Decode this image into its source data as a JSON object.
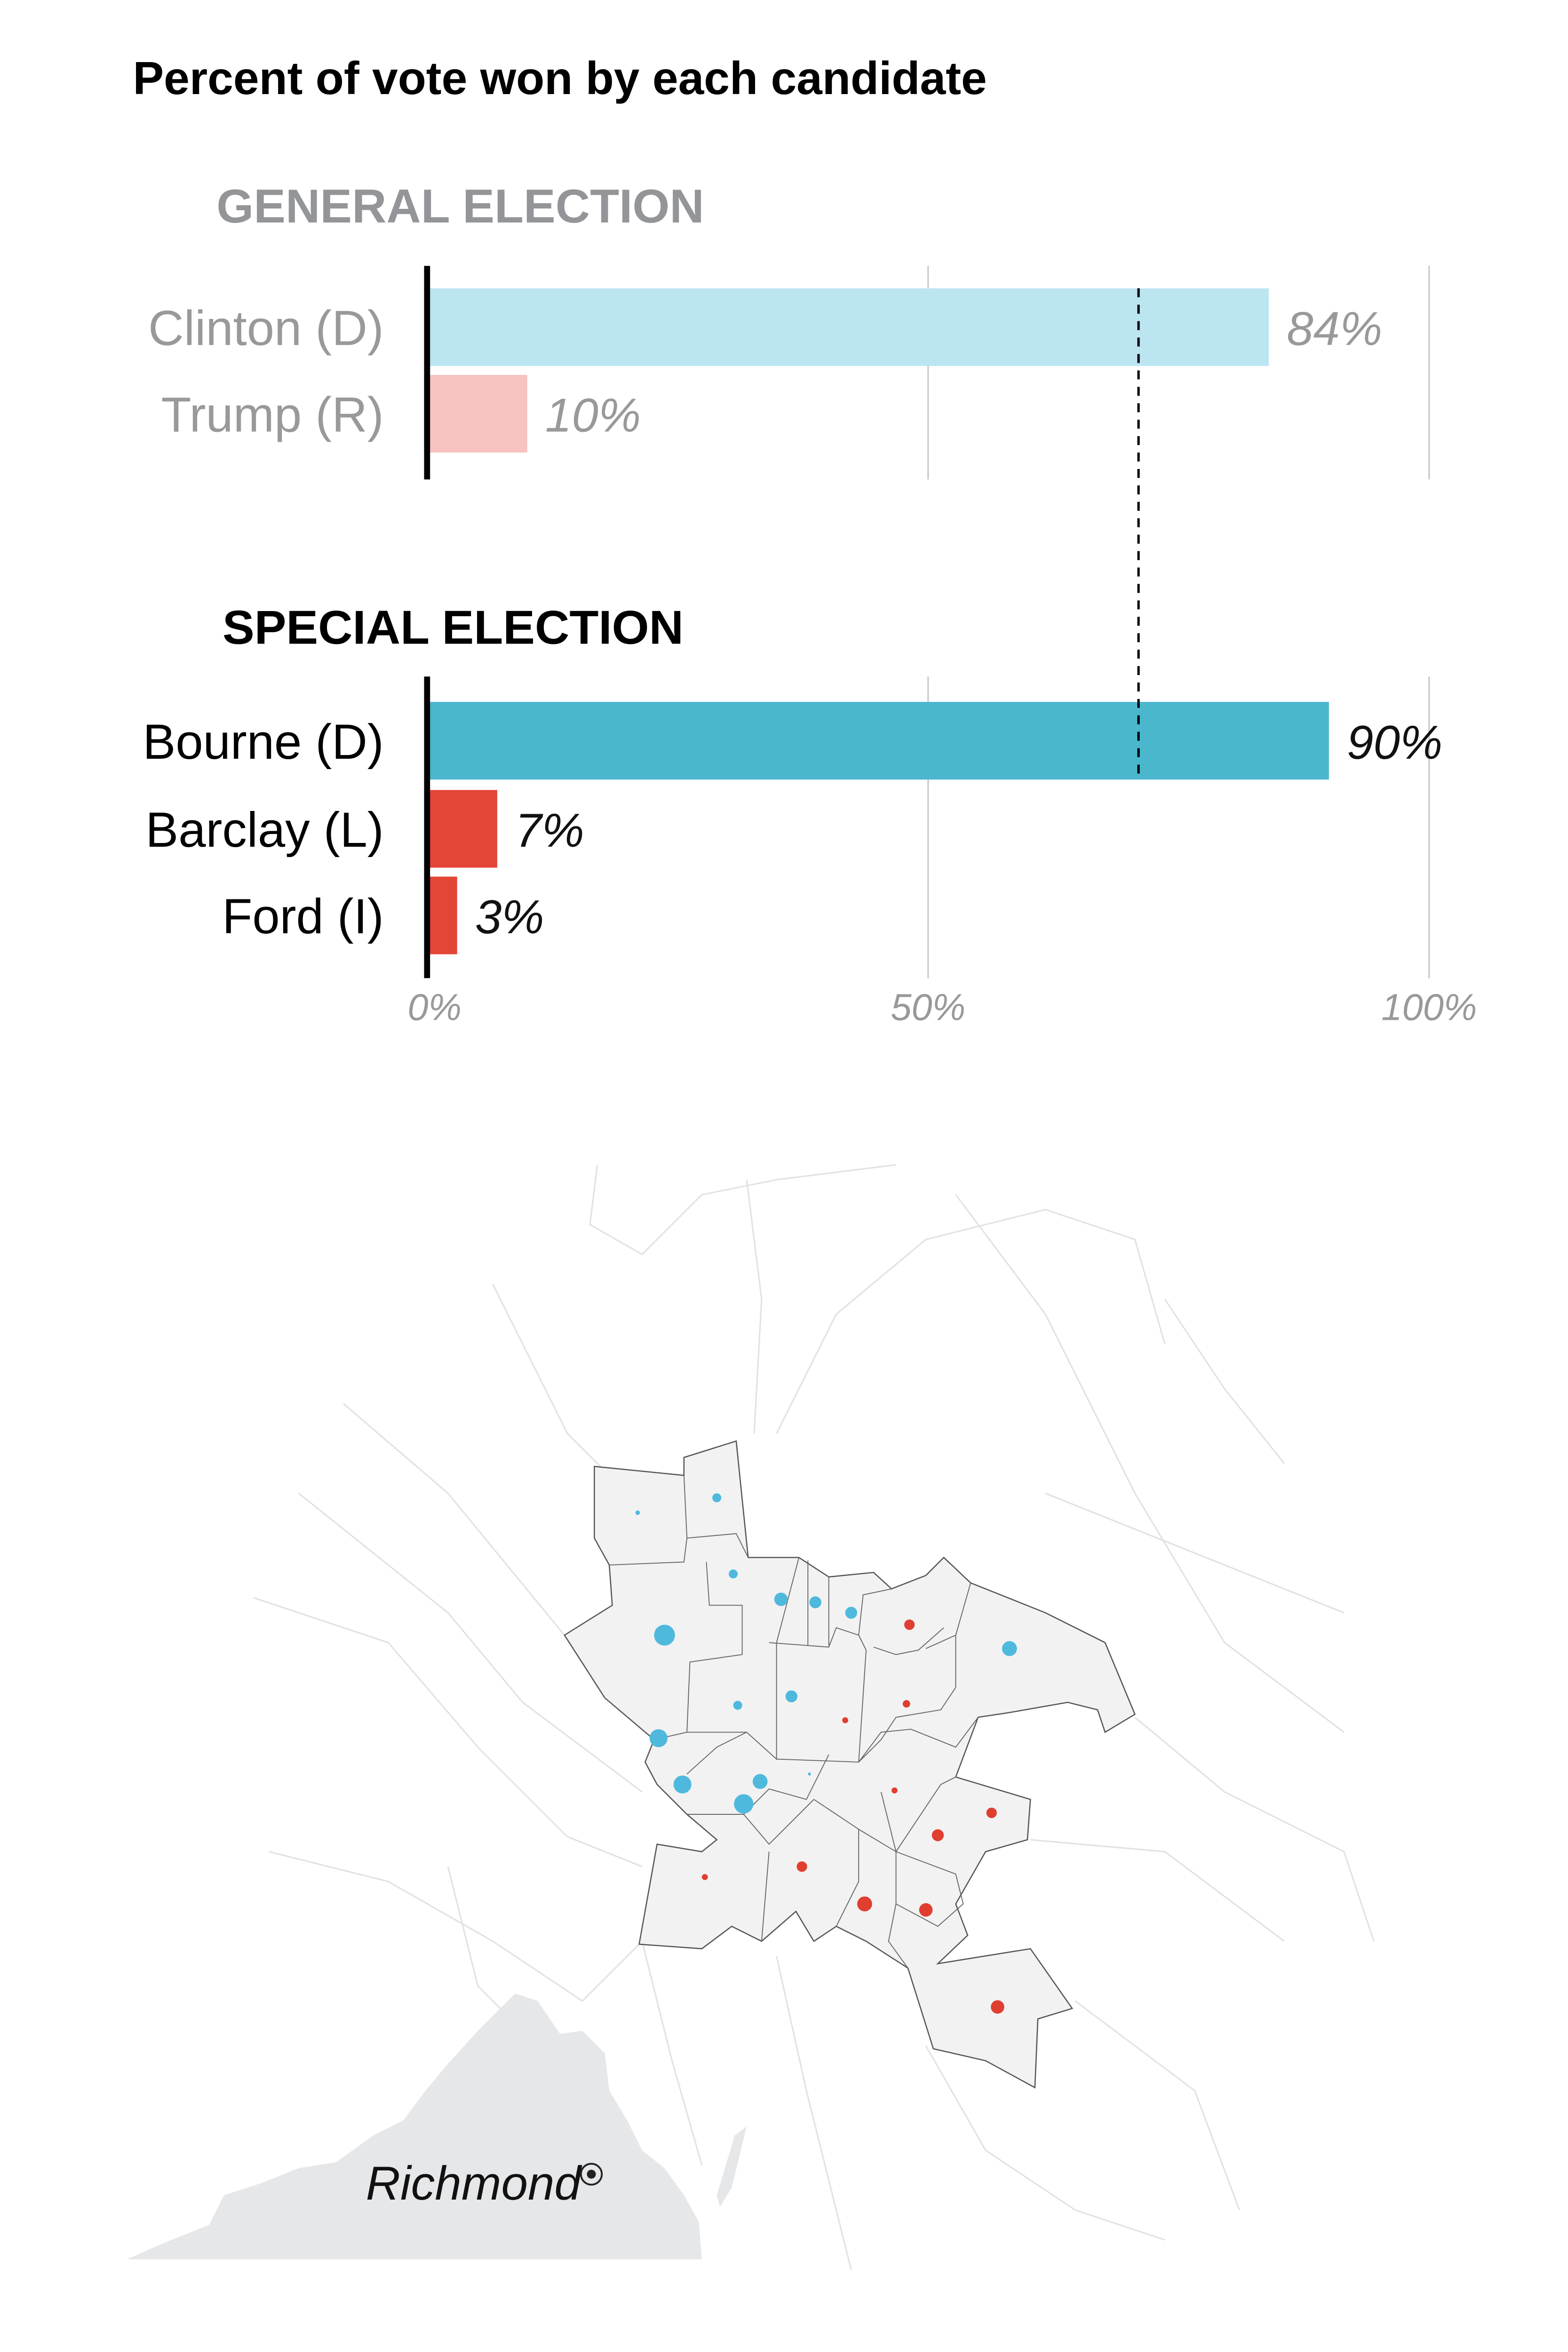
{
  "chart_data": {
    "type": "bar",
    "title": "Percent of vote won by each candidate",
    "xlim": [
      0,
      100
    ],
    "x_ticks": [
      "0%",
      "50%",
      "100%"
    ],
    "reference_line": 71,
    "groups": [
      {
        "name": "GENERAL ELECTION",
        "faded": true,
        "categories": [
          "Clinton (D)",
          "Trump (R)"
        ],
        "values": [
          84,
          10
        ],
        "value_labels": [
          "84%",
          "10%"
        ],
        "colors": [
          "#bce5f2",
          "#f7c3c2"
        ]
      },
      {
        "name": "SPECIAL ELECTION",
        "faded": false,
        "categories": [
          "Bourne (D)",
          "Barclay (L)",
          "Ford (I)"
        ],
        "values": [
          90,
          7,
          3
        ],
        "value_labels": [
          "90%",
          "7%",
          "3%"
        ],
        "colors": [
          "#4ab7cd",
          "#e34536",
          "#e34536"
        ]
      }
    ]
  },
  "map": {
    "city_label": "Richmond",
    "colors": {
      "democrat": "#4fb9dd",
      "republican": "#e03e2f",
      "precinct": "#f2f2f2",
      "state": "#e6e7e8"
    }
  }
}
